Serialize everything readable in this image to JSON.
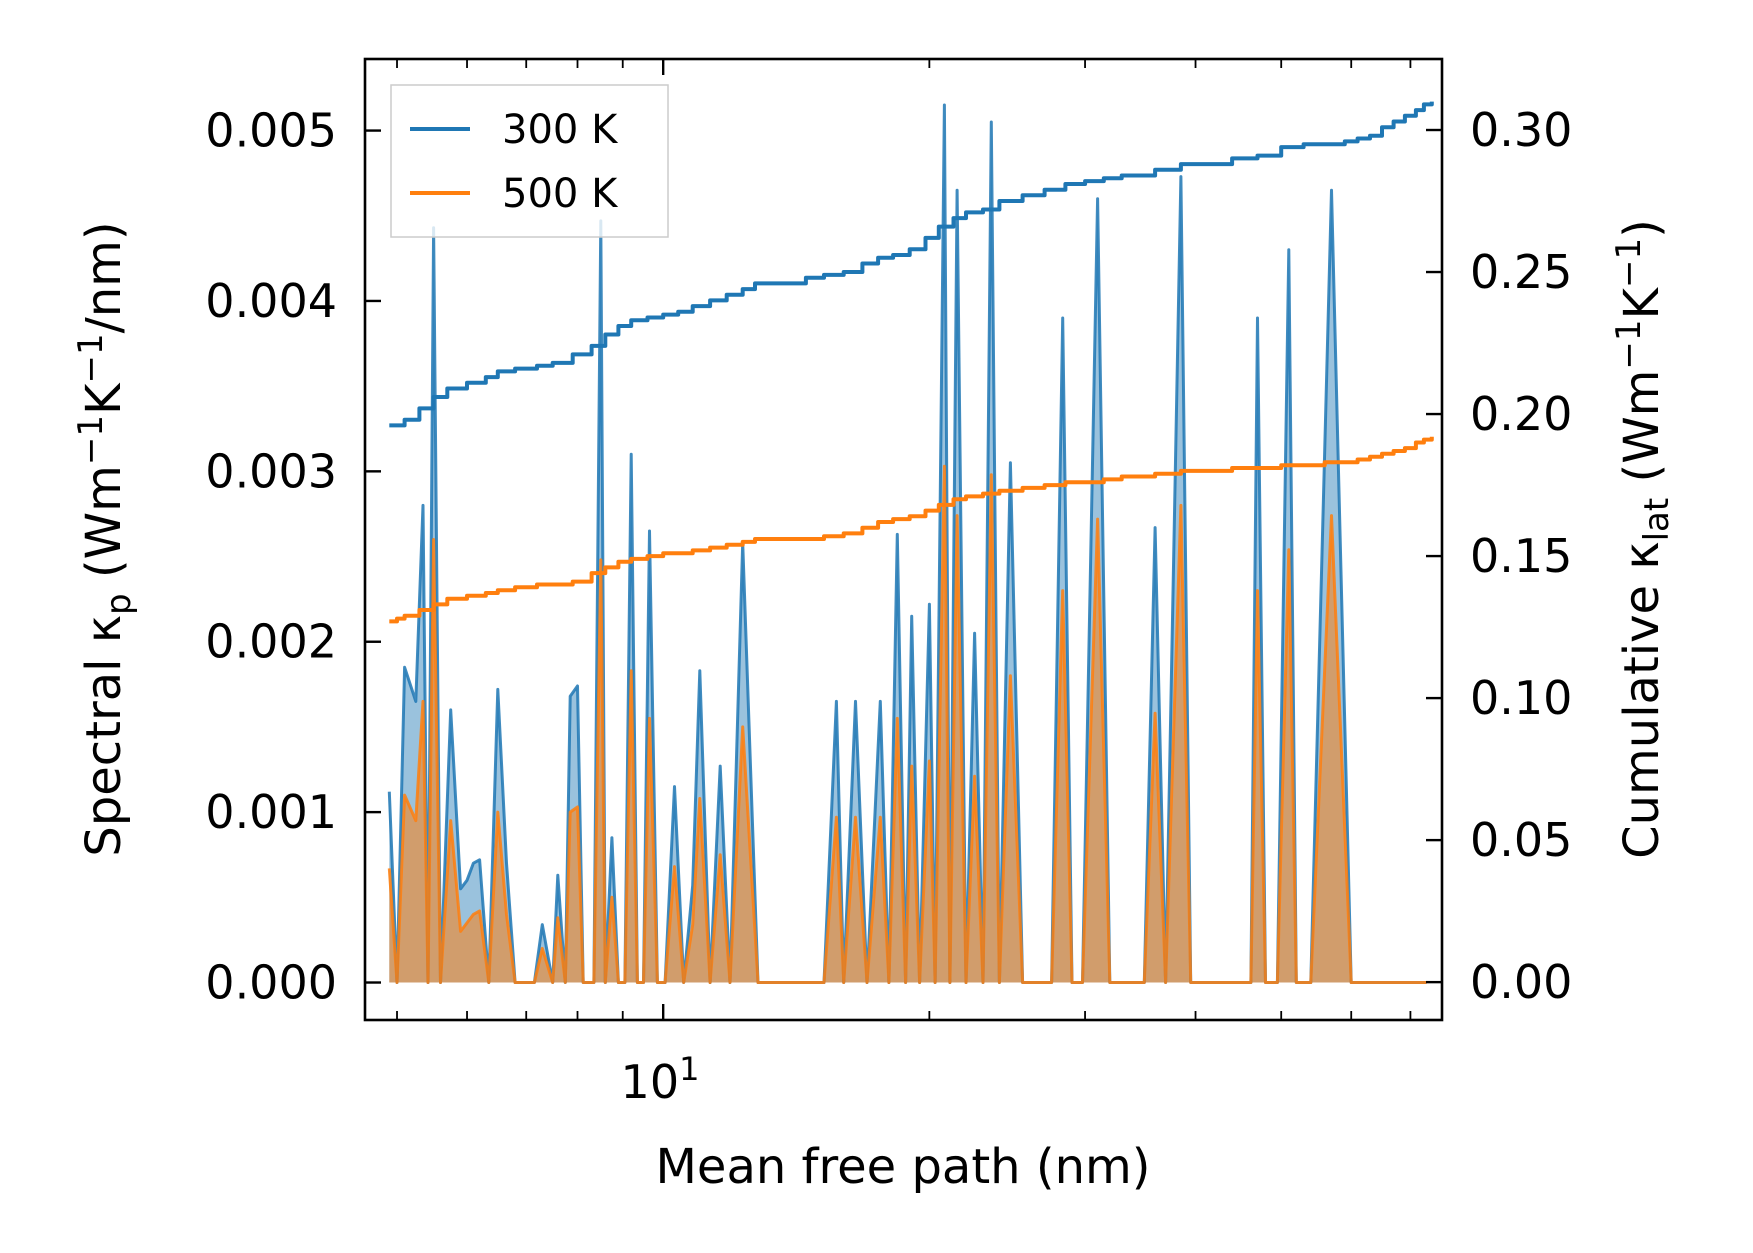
{
  "chart_data": {
    "type": "line",
    "title": "",
    "xlabel": "Mean free path (nm)",
    "xscale": "log",
    "xlim": [
      4.6,
      76
    ],
    "x_major_tick": 10,
    "x_major_tick_label": {
      "base": "10",
      "exp": "1"
    },
    "x_minor_ticks": [
      5,
      6,
      7,
      8,
      9,
      20,
      30,
      40,
      50,
      60,
      70
    ],
    "ylabel_left": {
      "main": "Spectral κ",
      "sub": "p",
      "units": " (Wm",
      "e1": "−1",
      "k": "K",
      "e2": "−1",
      "tail": "/nm)"
    },
    "ylabel_right": {
      "main": "Cumulative κ",
      "sub": "lat",
      "units": " (Wm",
      "e1": "−1",
      "k": "K",
      "e2": "−1",
      "tail": ")"
    },
    "ylim_left": [
      -0.00022,
      0.00542
    ],
    "ylim_right": [
      -0.01333,
      0.325
    ],
    "yticks_left": [
      0.0,
      0.001,
      0.002,
      0.003,
      0.004,
      0.005
    ],
    "yticks_left_labels": [
      "0.000",
      "0.001",
      "0.002",
      "0.003",
      "0.004",
      "0.005"
    ],
    "yticks_right": [
      0.0,
      0.05,
      0.1,
      0.15,
      0.2,
      0.25,
      0.3
    ],
    "yticks_right_labels": [
      "0.00",
      "0.05",
      "0.10",
      "0.15",
      "0.20",
      "0.25",
      "0.30"
    ],
    "legend": {
      "placement": "top-left",
      "entries": [
        "300 K",
        "500 K"
      ]
    },
    "colors": {
      "blue": "#1f77b4",
      "orange": "#ff7f0e",
      "fill_blue": "#1f77b4",
      "fill_orange": "#ff7f0e"
    },
    "spectral_x": [
      4.9,
      5.0,
      5.1,
      5.25,
      5.35,
      5.42,
      5.5,
      5.6,
      5.75,
      5.9,
      6.0,
      6.1,
      6.2,
      6.35,
      6.5,
      6.65,
      6.8,
      7.0,
      7.15,
      7.3,
      7.5,
      7.6,
      7.75,
      7.85,
      8.0,
      8.12,
      8.22,
      8.35,
      8.5,
      8.6,
      8.75,
      8.9,
      9.05,
      9.2,
      9.35,
      9.5,
      9.65,
      9.85,
      10.05,
      10.3,
      10.55,
      10.8,
      11.0,
      11.3,
      11.6,
      11.9,
      12.3,
      12.8,
      13.3,
      13.8,
      14.1,
      14.5,
      14.8,
      15.2,
      15.7,
      16.0,
      16.5,
      17.0,
      17.6,
      18.0,
      18.4,
      18.8,
      19.1,
      19.5,
      20.0,
      20.3,
      20.8,
      21.1,
      21.5,
      22.0,
      22.5,
      23.0,
      23.5,
      24.0,
      24.7,
      25.5,
      26.3,
      27.5,
      28.3,
      29.0,
      29.8,
      31.0,
      32.0,
      33.0,
      34.0,
      35.0,
      36.0,
      37.0,
      38.5,
      39.5,
      40.5,
      43.0,
      45.0,
      46.2,
      47.0,
      48.0,
      49.5,
      51.0,
      52.0,
      54.0,
      57.0,
      60.0,
      62.0,
      63.0,
      64.0,
      66.5,
      67.5,
      68.5,
      70.0,
      71.0,
      72.0,
      73.0
    ],
    "spectral_300K": [
      0.00112,
      0.0,
      0.00185,
      0.00165,
      0.0028,
      0.0,
      0.00443,
      0.0,
      0.0016,
      0.00055,
      0.0006,
      0.0007,
      0.00072,
      0.0,
      0.00172,
      0.0007,
      0.0,
      0.0,
      0.0,
      0.00034,
      0.0,
      0.00063,
      0.0,
      0.00168,
      0.00174,
      0.0,
      0.0,
      0.0,
      0.00447,
      0.0,
      0.00085,
      0.0,
      0.0,
      0.0031,
      0.0,
      0.0,
      0.00265,
      0.0,
      0.0,
      0.00115,
      0.0,
      0.00057,
      0.00183,
      0.0,
      0.00127,
      0.0,
      0.00258,
      0.0,
      0.0,
      0.0,
      0.0,
      0.0,
      0.0,
      0.0,
      0.00165,
      0.0,
      0.00165,
      0.0,
      0.00165,
      0.0,
      0.00263,
      0.0,
      0.00215,
      0.0,
      0.00222,
      0.0,
      0.00515,
      0.0,
      0.00465,
      0.0,
      0.00205,
      0.0,
      0.00505,
      0.0,
      0.00305,
      0.0,
      0.0,
      0.0,
      0.0039,
      0.0,
      0.0,
      0.0046,
      0.0,
      0.0,
      0.0,
      0.0,
      0.00267,
      0.0,
      0.00473,
      0.0,
      0.0,
      0.0,
      0.0,
      0.0,
      0.0039,
      0.0,
      0.0,
      0.0043,
      0.0,
      0.0,
      0.00465,
      0.0,
      0.0,
      0.0,
      0.0,
      0.0,
      0.0,
      0.0,
      0.0,
      0.0,
      0.0,
      0.0
    ],
    "spectral_500K": [
      0.00067,
      0.0,
      0.0011,
      0.00095,
      0.00165,
      0.0,
      0.0026,
      0.0,
      0.00095,
      0.0003,
      0.00035,
      0.0004,
      0.00042,
      0.0,
      0.001,
      0.0004,
      0.0,
      0.0,
      0.0,
      0.0002,
      0.0,
      0.00038,
      0.0,
      0.001,
      0.00103,
      0.0,
      0.0,
      0.0,
      0.00248,
      0.0,
      0.0005,
      0.0,
      0.0,
      0.00183,
      0.0,
      0.0,
      0.00155,
      0.0,
      0.0,
      0.00068,
      0.0,
      0.00034,
      0.00108,
      0.0,
      0.00075,
      0.0,
      0.0015,
      0.0,
      0.0,
      0.0,
      0.0,
      0.0,
      0.0,
      0.0,
      0.00097,
      0.0,
      0.00097,
      0.0,
      0.00097,
      0.0,
      0.00155,
      0.0,
      0.00127,
      0.0,
      0.0013,
      0.0,
      0.00303,
      0.0,
      0.00274,
      0.0,
      0.00121,
      0.0,
      0.00298,
      0.0,
      0.0018,
      0.0,
      0.0,
      0.0,
      0.0023,
      0.0,
      0.0,
      0.00272,
      0.0,
      0.0,
      0.0,
      0.0,
      0.00158,
      0.0,
      0.0028,
      0.0,
      0.0,
      0.0,
      0.0,
      0.0,
      0.0023,
      0.0,
      0.0,
      0.00254,
      0.0,
      0.0,
      0.00274,
      0.0,
      0.0,
      0.0,
      0.0,
      0.0,
      0.0,
      0.0,
      0.0,
      0.0,
      0.0,
      0.0
    ],
    "cumulative_x": [
      4.9,
      5.0,
      5.1,
      5.3,
      5.5,
      5.7,
      6.0,
      6.3,
      6.5,
      6.8,
      7.2,
      7.5,
      7.9,
      8.3,
      8.6,
      8.9,
      9.2,
      9.6,
      10.0,
      10.4,
      10.8,
      11.3,
      11.8,
      12.3,
      12.7,
      13.3,
      13.8,
      14.5,
      15.2,
      16.0,
      16.8,
      17.5,
      18.2,
      19.0,
      19.8,
      20.5,
      21.3,
      22.0,
      23.0,
      24.0,
      25.5,
      27.0,
      28.5,
      30.0,
      31.5,
      33.0,
      34.5,
      36.0,
      38.5,
      41.0,
      44.0,
      47.0,
      50.0,
      53.0,
      56.0,
      59.0,
      61.0,
      63.0,
      65.0,
      67.0,
      69.0,
      71.0,
      72.5,
      74.0
    ],
    "cumulative_300K": [
      0.196,
      0.196,
      0.198,
      0.202,
      0.206,
      0.209,
      0.211,
      0.213,
      0.215,
      0.216,
      0.217,
      0.218,
      0.221,
      0.224,
      0.228,
      0.231,
      0.233,
      0.234,
      0.235,
      0.236,
      0.238,
      0.24,
      0.242,
      0.244,
      0.246,
      0.246,
      0.246,
      0.248,
      0.249,
      0.25,
      0.253,
      0.255,
      0.256,
      0.258,
      0.262,
      0.266,
      0.269,
      0.271,
      0.272,
      0.275,
      0.277,
      0.279,
      0.281,
      0.282,
      0.283,
      0.284,
      0.284,
      0.286,
      0.288,
      0.288,
      0.29,
      0.291,
      0.294,
      0.295,
      0.295,
      0.296,
      0.297,
      0.298,
      0.301,
      0.303,
      0.305,
      0.307,
      0.309,
      0.31
    ],
    "cumulative_500K": [
      0.127,
      0.128,
      0.129,
      0.131,
      0.133,
      0.135,
      0.136,
      0.137,
      0.138,
      0.139,
      0.14,
      0.14,
      0.141,
      0.144,
      0.146,
      0.148,
      0.149,
      0.15,
      0.151,
      0.151,
      0.152,
      0.153,
      0.154,
      0.155,
      0.156,
      0.156,
      0.156,
      0.156,
      0.157,
      0.158,
      0.16,
      0.162,
      0.163,
      0.164,
      0.166,
      0.168,
      0.17,
      0.171,
      0.172,
      0.173,
      0.174,
      0.175,
      0.176,
      0.176,
      0.177,
      0.178,
      0.178,
      0.179,
      0.18,
      0.18,
      0.181,
      0.181,
      0.182,
      0.182,
      0.183,
      0.183,
      0.184,
      0.185,
      0.186,
      0.187,
      0.188,
      0.19,
      0.191,
      0.192
    ]
  }
}
